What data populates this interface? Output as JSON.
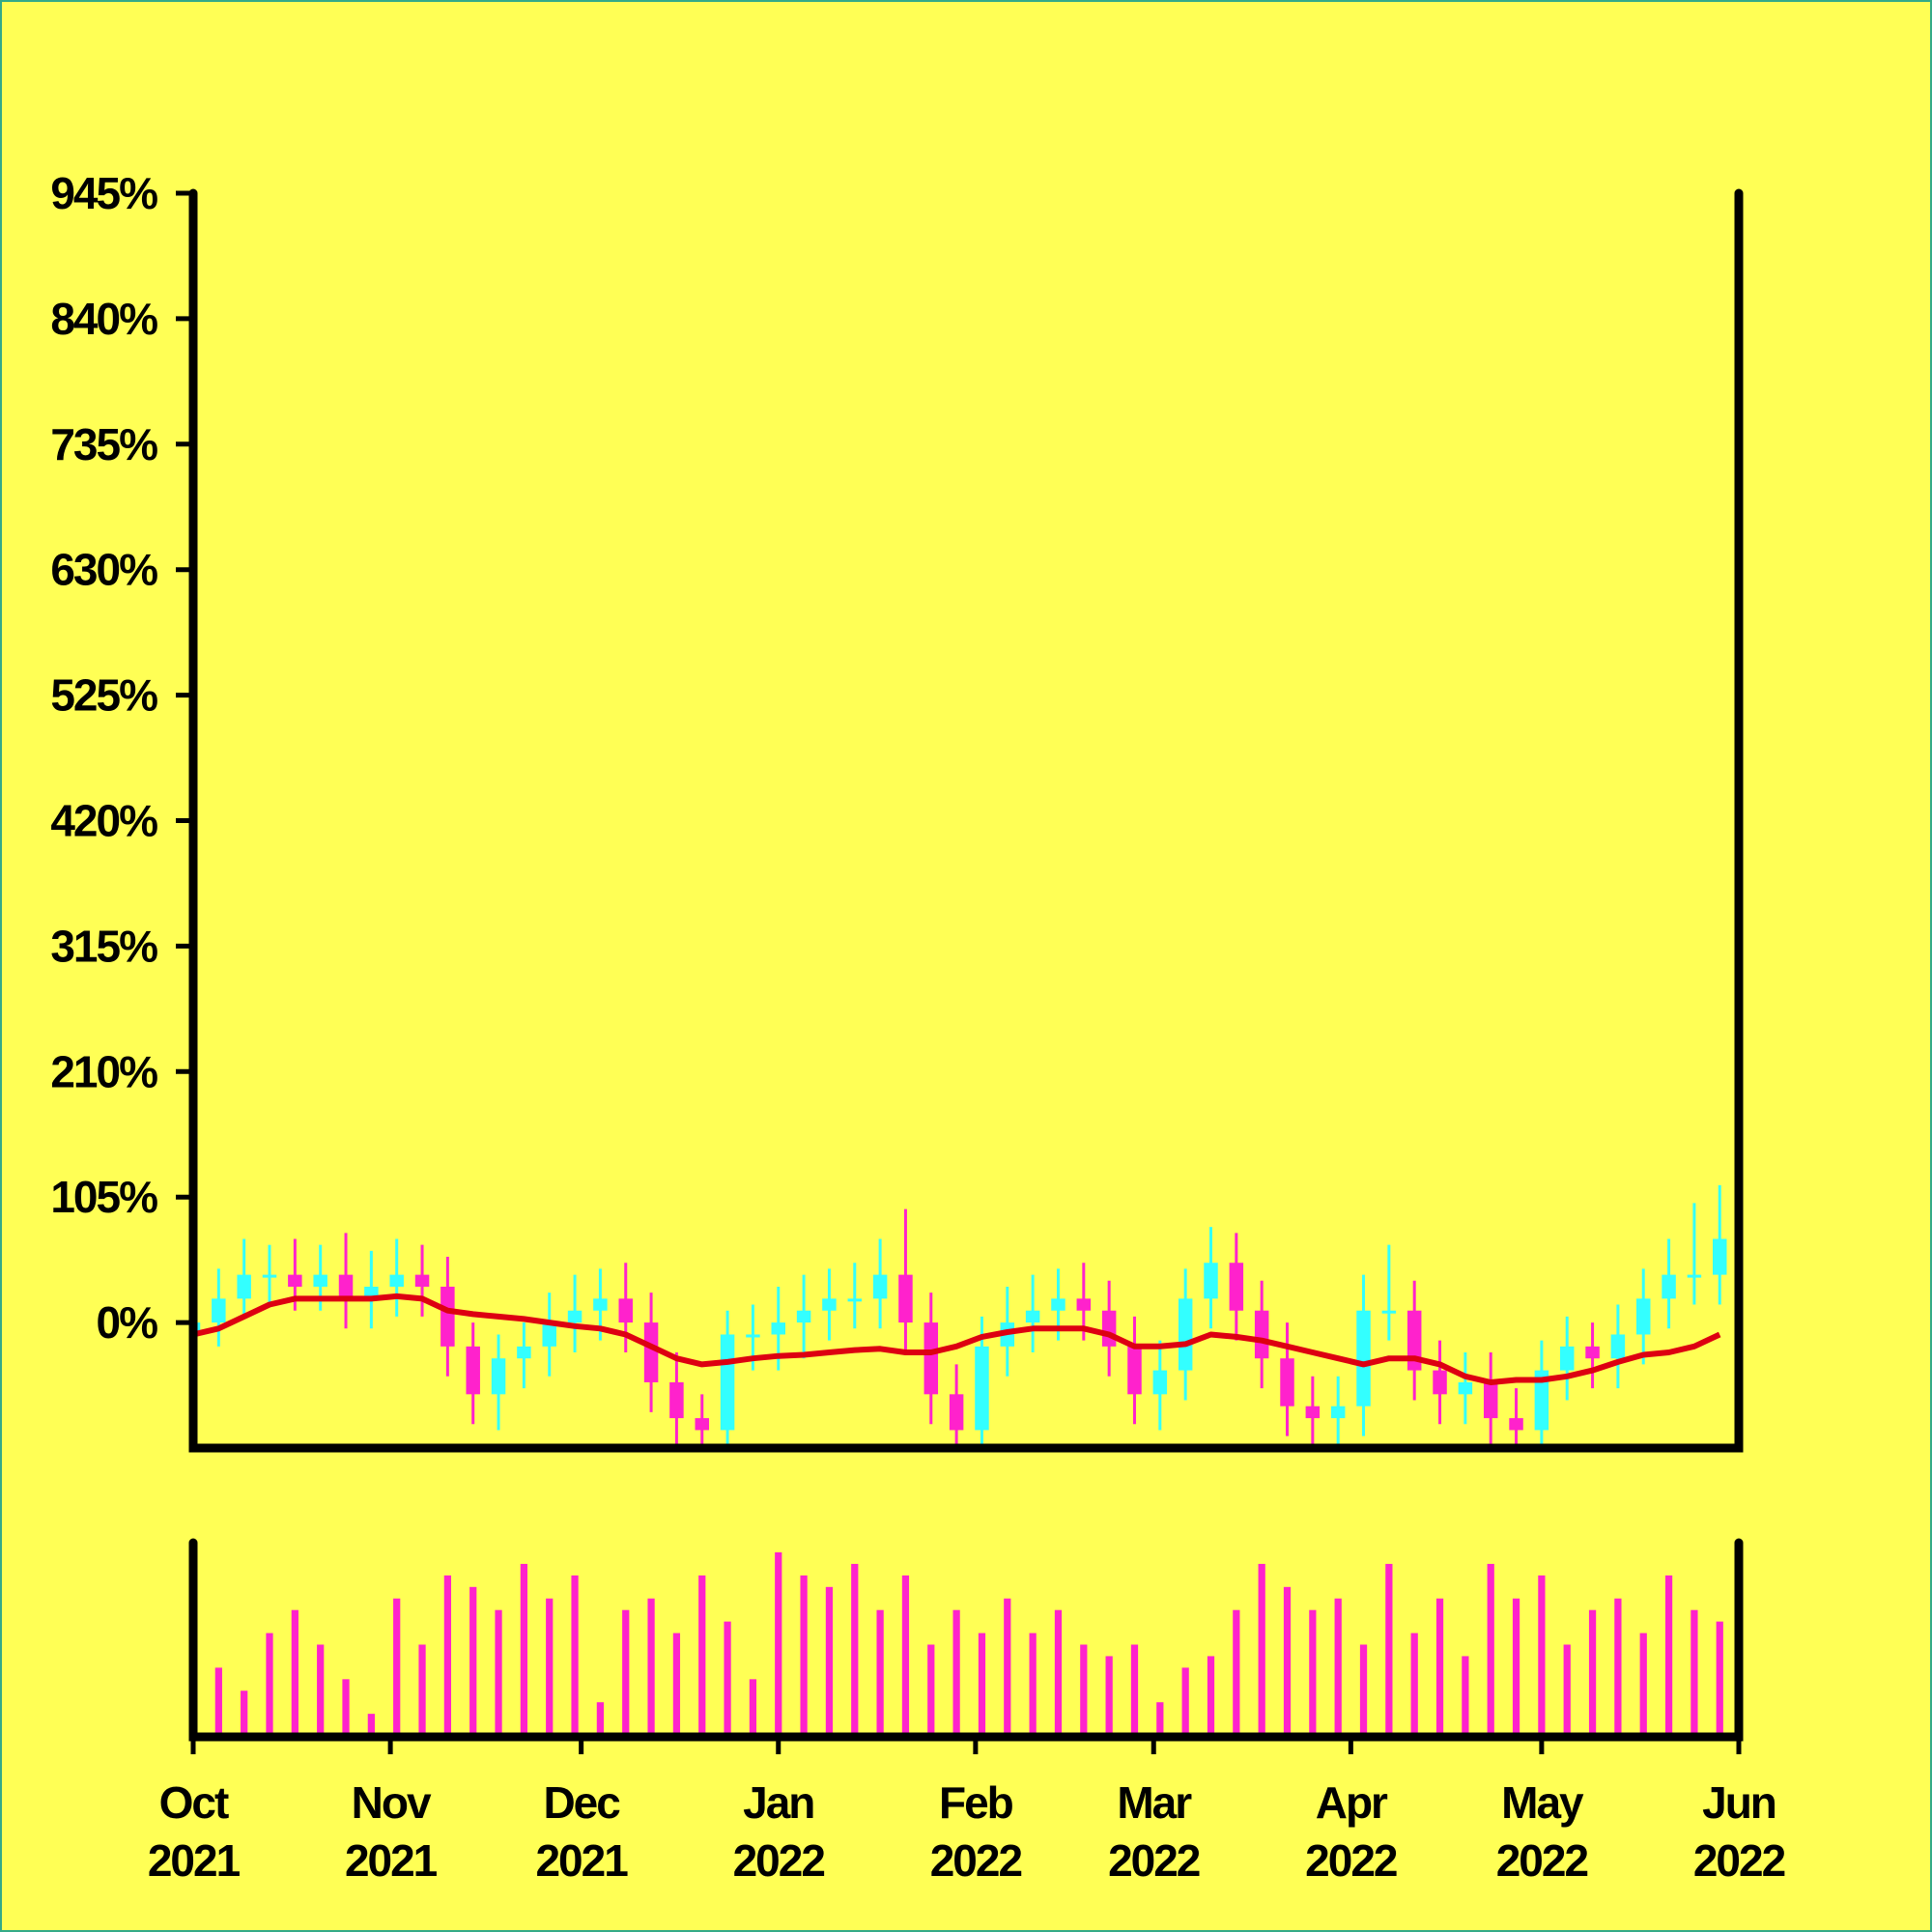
{
  "chart_data": {
    "type": "candlestick",
    "x": [
      "2021-10-01",
      "2021-10-05",
      "2021-10-09",
      "2021-10-13",
      "2021-10-17",
      "2021-10-21",
      "2021-10-25",
      "2021-10-29",
      "2021-11-02",
      "2021-11-06",
      "2021-11-10",
      "2021-11-14",
      "2021-11-18",
      "2021-11-22",
      "2021-11-26",
      "2021-11-30",
      "2021-12-04",
      "2021-12-08",
      "2021-12-12",
      "2021-12-16",
      "2021-12-20",
      "2021-12-24",
      "2021-12-28",
      "2022-01-01",
      "2022-01-05",
      "2022-01-09",
      "2022-01-13",
      "2022-01-17",
      "2022-01-21",
      "2022-01-25",
      "2022-01-29",
      "2022-02-02",
      "2022-02-06",
      "2022-02-10",
      "2022-02-14",
      "2022-02-18",
      "2022-02-22",
      "2022-02-26",
      "2022-03-02",
      "2022-03-06",
      "2022-03-10",
      "2022-03-14",
      "2022-03-18",
      "2022-03-22",
      "2022-03-26",
      "2022-03-30",
      "2022-04-03",
      "2022-04-07",
      "2022-04-11",
      "2022-04-15",
      "2022-04-19",
      "2022-04-23",
      "2022-04-27",
      "2022-05-01",
      "2022-05-05",
      "2022-05-09",
      "2022-05-13",
      "2022-05-17",
      "2022-05-21",
      "2022-05-25",
      "2022-05-29"
    ],
    "open": [
      -10,
      0,
      20,
      40,
      40,
      30,
      40,
      20,
      30,
      40,
      30,
      -20,
      -60,
      -30,
      -20,
      0,
      10,
      20,
      0,
      -50,
      -80,
      -90,
      -10,
      -10,
      0,
      10,
      20,
      20,
      40,
      0,
      -60,
      -90,
      -20,
      0,
      10,
      20,
      10,
      -20,
      -60,
      -40,
      20,
      50,
      10,
      -30,
      -70,
      -80,
      -70,
      10,
      10,
      -40,
      -60,
      -50,
      -80,
      -90,
      -40,
      -20,
      -30,
      -10,
      20,
      40,
      40
    ],
    "high": [
      25,
      45,
      70,
      65,
      70,
      65,
      75,
      60,
      70,
      65,
      55,
      0,
      -10,
      0,
      25,
      40,
      45,
      50,
      25,
      -25,
      -60,
      10,
      15,
      30,
      40,
      45,
      50,
      70,
      95,
      25,
      -35,
      5,
      30,
      40,
      45,
      50,
      35,
      5,
      -15,
      45,
      80,
      75,
      35,
      0,
      -45,
      -45,
      40,
      65,
      35,
      -15,
      -25,
      -25,
      -55,
      -15,
      5,
      0,
      15,
      45,
      70,
      100,
      115
    ],
    "low": [
      -40,
      -20,
      5,
      15,
      10,
      10,
      -5,
      -5,
      5,
      5,
      -45,
      -85,
      -90,
      -55,
      -45,
      -25,
      -15,
      -25,
      -75,
      -105,
      -115,
      -115,
      -40,
      -40,
      -30,
      -15,
      -5,
      -5,
      -25,
      -85,
      -115,
      -115,
      -45,
      -25,
      -15,
      -15,
      -45,
      -85,
      -90,
      -65,
      -5,
      -15,
      -55,
      -95,
      -105,
      -110,
      -95,
      -15,
      -65,
      -85,
      -85,
      -105,
      -115,
      -115,
      -65,
      -55,
      -55,
      -35,
      -5,
      15,
      15
    ],
    "close": [
      0,
      20,
      40,
      40,
      30,
      40,
      20,
      30,
      40,
      30,
      -20,
      -60,
      -30,
      -20,
      0,
      10,
      20,
      0,
      -50,
      -80,
      -90,
      -10,
      -10,
      0,
      10,
      20,
      20,
      40,
      0,
      -60,
      -90,
      -20,
      0,
      10,
      20,
      10,
      -20,
      -60,
      -40,
      20,
      50,
      10,
      -30,
      -70,
      -80,
      -70,
      10,
      10,
      -40,
      -60,
      -50,
      -80,
      -90,
      -40,
      -20,
      -30,
      -10,
      20,
      40,
      40,
      70
    ],
    "moving_average": [
      -10,
      -5,
      5,
      15,
      20,
      20,
      20,
      20,
      22,
      20,
      10,
      7,
      5,
      3,
      0,
      -3,
      -5,
      -10,
      -20,
      -30,
      -35,
      -33,
      -30,
      -28,
      -27,
      -25,
      -23,
      -22,
      -25,
      -25,
      -20,
      -12,
      -8,
      -5,
      -5,
      -5,
      -10,
      -20,
      -20,
      -18,
      -10,
      -12,
      -15,
      -20,
      -25,
      -30,
      -35,
      -30,
      -30,
      -35,
      -45,
      -50,
      -48,
      -48,
      -45,
      -40,
      -33,
      -27,
      -25,
      -20,
      -10
    ],
    "volume": [
      10,
      30,
      20,
      45,
      55,
      40,
      25,
      10,
      60,
      40,
      70,
      65,
      55,
      75,
      60,
      70,
      15,
      55,
      60,
      45,
      70,
      50,
      25,
      80,
      70,
      65,
      75,
      55,
      70,
      40,
      55,
      45,
      60,
      45,
      55,
      40,
      35,
      40,
      15,
      30,
      35,
      55,
      75,
      65,
      55,
      60,
      40,
      75,
      45,
      60,
      35,
      75,
      60,
      70,
      40,
      55,
      60,
      45,
      70,
      55,
      50
    ],
    "up_color": "#33ffff",
    "down_color": "#ff22cc",
    "ma_color": "#dd0011",
    "volume_color": "#ff22cc",
    "ylim": [
      -105,
      945
    ],
    "yticks": [
      {
        "value": 0,
        "label": "0%"
      },
      {
        "value": 105,
        "label": "105%"
      },
      {
        "value": 210,
        "label": "210%"
      },
      {
        "value": 315,
        "label": "315%"
      },
      {
        "value": 420,
        "label": "420%"
      },
      {
        "value": 525,
        "label": "525%"
      },
      {
        "value": 630,
        "label": "630%"
      },
      {
        "value": 735,
        "label": "735%"
      },
      {
        "value": 840,
        "label": "840%"
      },
      {
        "value": 945,
        "label": "945%"
      }
    ],
    "xlim": [
      "2021-10-01",
      "2022-06-01"
    ],
    "xticks": [
      {
        "value": "2021-10-01",
        "label": "Oct\n2021"
      },
      {
        "value": "2021-11-01",
        "label": "Nov\n2021"
      },
      {
        "value": "2021-12-01",
        "label": "Dec\n2021"
      },
      {
        "value": "2022-01-01",
        "label": "Jan\n2022"
      },
      {
        "value": "2022-02-01",
        "label": "Feb\n2022"
      },
      {
        "value": "2022-03-01",
        "label": "Mar\n2022"
      },
      {
        "value": "2022-04-01",
        "label": "Apr\n2022"
      },
      {
        "value": "2022-05-01",
        "label": "May\n2022"
      },
      {
        "value": "2022-06-01",
        "label": "Jun\n2022"
      }
    ]
  }
}
